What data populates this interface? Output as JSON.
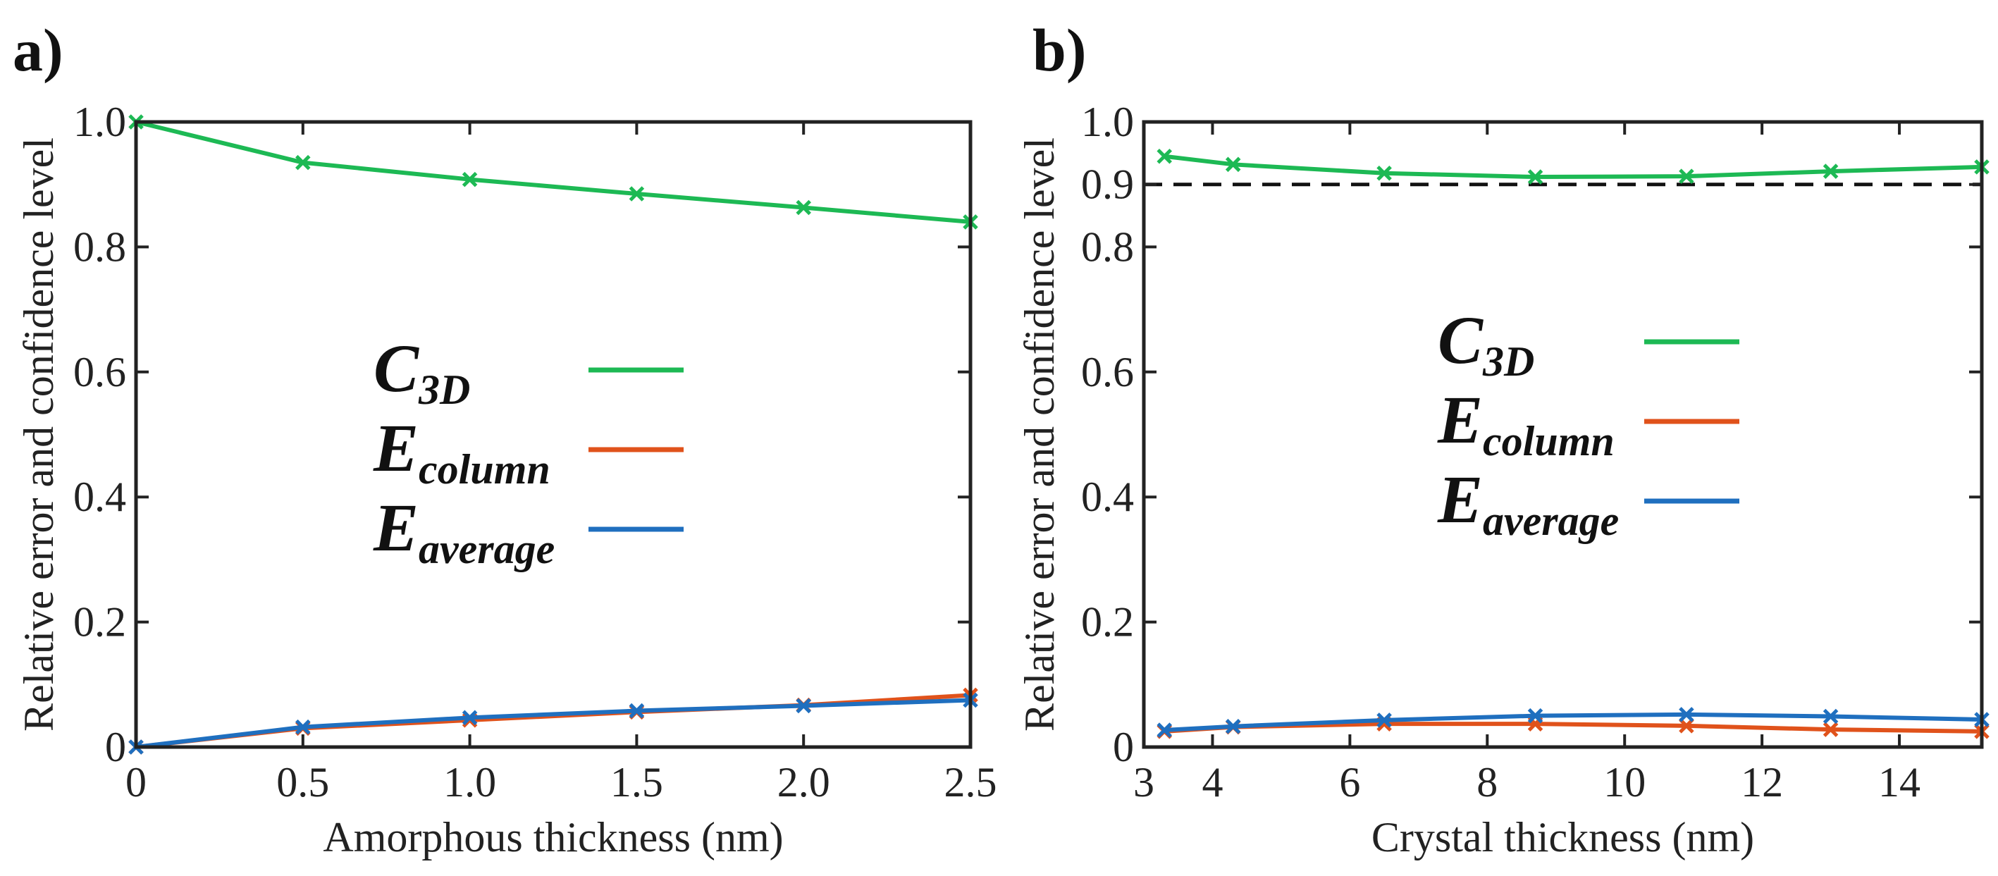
{
  "chart_data": [
    {
      "type": "line",
      "panel_label": "a)",
      "xlabel": "Amorphous thickness (nm)",
      "ylabel": "Relative error and confidence level",
      "xlim": [
        0,
        2.5
      ],
      "ylim": [
        0,
        1.0
      ],
      "x_ticks": [
        "0",
        "0.5",
        "1.0",
        "1.5",
        "2.0",
        "2.5"
      ],
      "y_ticks": [
        "0",
        "0.2",
        "0.4",
        "0.6",
        "0.8",
        "1.0"
      ],
      "x": [
        0,
        0.5,
        1.0,
        1.5,
        2.0,
        2.5
      ],
      "series": [
        {
          "name": "C",
          "subscript": "3D",
          "color": "#1db954",
          "values": [
            1.0,
            0.935,
            0.908,
            0.885,
            0.863,
            0.84
          ]
        },
        {
          "name": "E",
          "subscript": "column",
          "color": "#e0521b",
          "values": [
            0.0,
            0.03,
            0.043,
            0.056,
            0.067,
            0.083
          ]
        },
        {
          "name": "E",
          "subscript": "average",
          "color": "#1f6fbf",
          "values": [
            0.0,
            0.032,
            0.047,
            0.058,
            0.066,
            0.075
          ]
        }
      ],
      "legend_placement": "center",
      "grid": false
    },
    {
      "type": "line",
      "panel_label": "b)",
      "xlabel": "Crystal thickness (nm)",
      "ylabel": "Relative error and confidence level",
      "xlim": [
        3,
        15.2
      ],
      "ylim": [
        0,
        1.0
      ],
      "x_ticks": [
        "3",
        "4",
        "6",
        "8",
        "10",
        "12",
        "14"
      ],
      "y_ticks": [
        "0",
        "0.2",
        "0.4",
        "0.6",
        "0.8",
        "0.9",
        "1.0"
      ],
      "x": [
        3.3,
        4.3,
        6.5,
        8.7,
        10.9,
        13.0,
        15.2
      ],
      "series": [
        {
          "name": "C",
          "subscript": "3D",
          "color": "#1db954",
          "values": [
            0.945,
            0.932,
            0.918,
            0.912,
            0.913,
            0.921,
            0.928
          ]
        },
        {
          "name": "E",
          "subscript": "column",
          "color": "#e0521b",
          "values": [
            0.025,
            0.032,
            0.037,
            0.037,
            0.034,
            0.028,
            0.025
          ]
        },
        {
          "name": "E",
          "subscript": "average",
          "color": "#1f6fbf",
          "values": [
            0.027,
            0.033,
            0.043,
            0.05,
            0.052,
            0.049,
            0.044
          ]
        }
      ],
      "reference_line": {
        "y": 0.9,
        "color": "#111111",
        "style": "dashed"
      },
      "legend_placement": "center",
      "grid": false
    }
  ]
}
